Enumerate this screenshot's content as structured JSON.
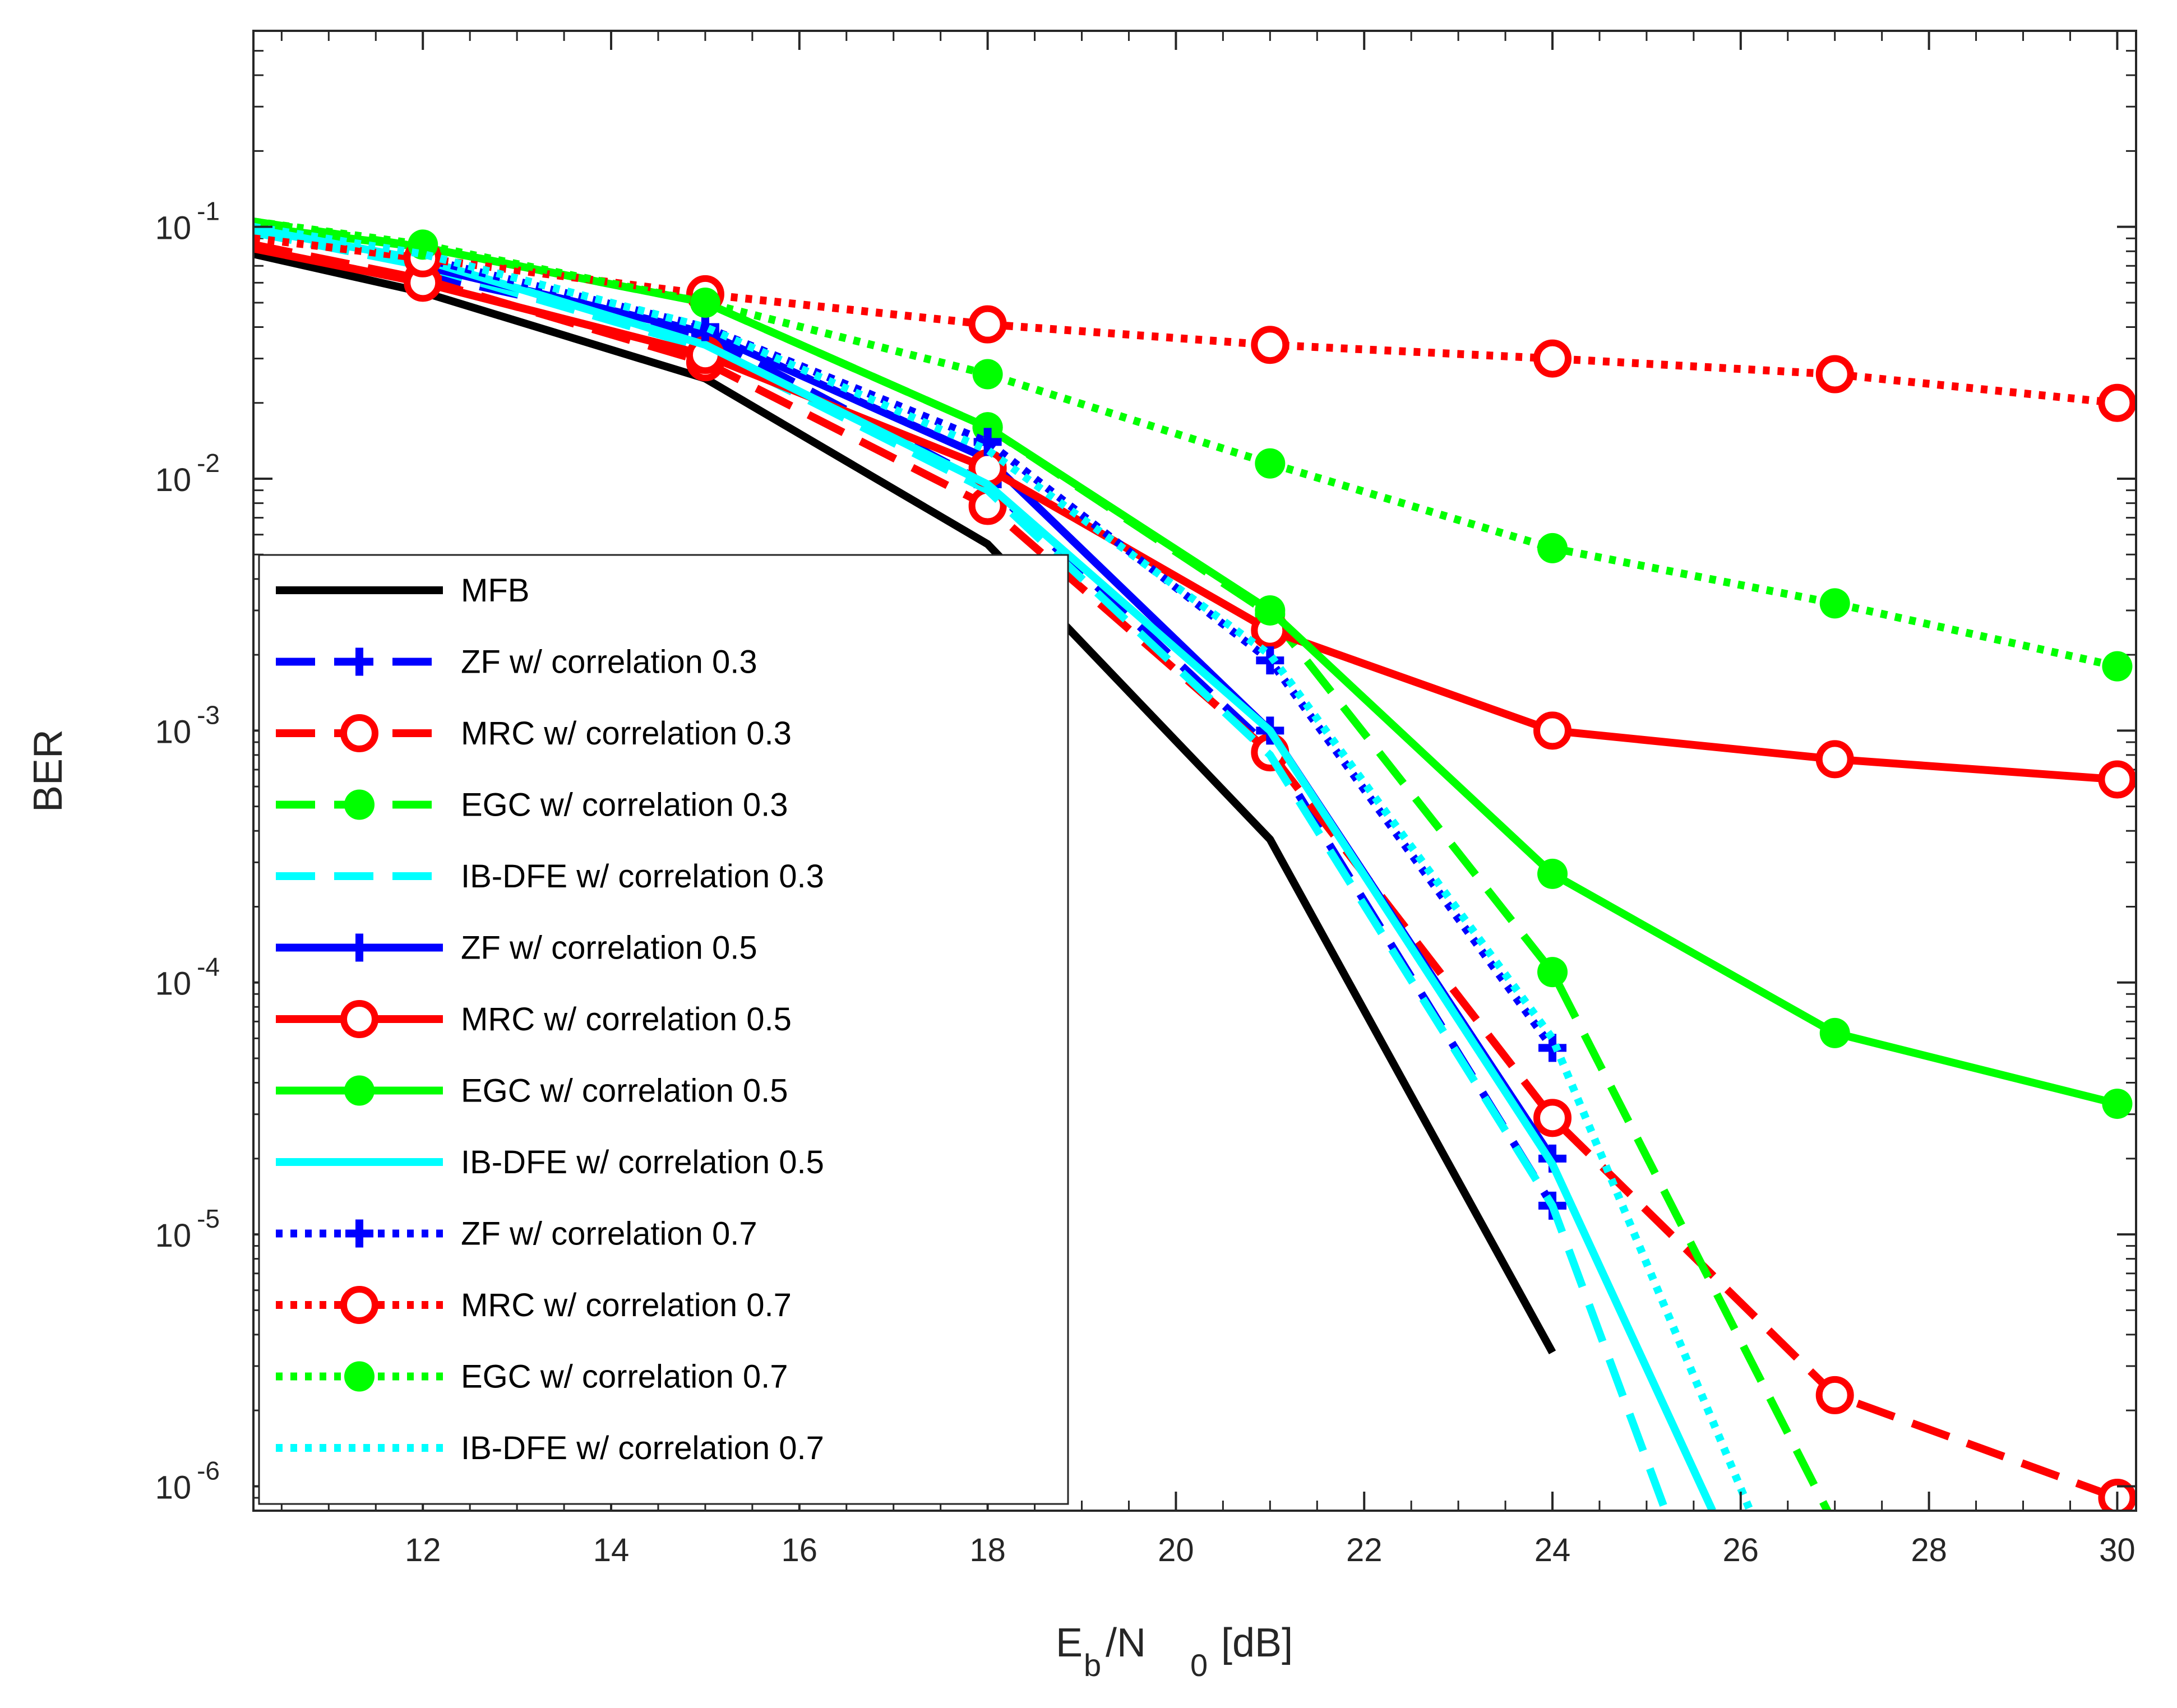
{
  "chart_data": {
    "type": "line",
    "title": "",
    "xlabel": {
      "E": "E",
      "b": "b",
      "slash": "/N",
      "zero": "0",
      "unit": "[dB]"
    },
    "ylabel": "BER",
    "xlim": [
      10.2,
      30.2
    ],
    "ylim": [
      8e-07,
      0.6
    ],
    "yscale": "log",
    "grid": false,
    "legend_position": "bottom-left",
    "x_ticks": [
      12,
      14,
      16,
      18,
      20,
      22,
      24,
      26,
      28,
      30
    ],
    "x_tick_labels": [
      "12",
      "14",
      "16",
      "18",
      "20",
      "22",
      "24",
      "26",
      "28",
      "30"
    ],
    "y_ticks": [
      {
        "value": 0.1,
        "base": "10",
        "exp": "-1"
      },
      {
        "value": 0.01,
        "base": "10",
        "exp": "-2"
      },
      {
        "value": 0.001,
        "base": "10",
        "exp": "-3"
      },
      {
        "value": 0.0001,
        "base": "10",
        "exp": "-4"
      },
      {
        "value": 1e-05,
        "base": "10",
        "exp": "-5"
      },
      {
        "value": 1e-06,
        "base": "10",
        "exp": "-6"
      }
    ],
    "series": [
      {
        "name": "MFB",
        "color": "#000000",
        "style": "solid",
        "marker": "none",
        "x": [
          10.2,
          12,
          15,
          18,
          21,
          24
        ],
        "y": [
          0.078,
          0.055,
          0.025,
          0.0055,
          0.00037,
          3.4e-06
        ]
      },
      {
        "name": "ZF w/ correlation 0.3",
        "color": "#0000FF",
        "style": "dashed",
        "marker": "plus",
        "x": [
          12,
          15,
          18,
          21,
          24
        ],
        "y": [
          0.065,
          0.037,
          0.0095,
          0.00085,
          1.3e-05
        ]
      },
      {
        "name": "MRC w/ correlation 0.3",
        "color": "#FF0000",
        "style": "dashed",
        "marker": "circle",
        "x": [
          10.2,
          12,
          15,
          18,
          21,
          24,
          27,
          30
        ],
        "y": [
          0.085,
          0.062,
          0.029,
          0.0078,
          0.00082,
          2.9e-05,
          2.3e-06,
          9e-07
        ]
      },
      {
        "name": "EGC w/ correlation 0.3",
        "color": "#00FF00",
        "style": "dashed",
        "marker": "dot",
        "x": [
          10.2,
          12,
          15,
          18,
          21,
          24,
          27
        ],
        "y": [
          0.105,
          0.083,
          0.05,
          0.016,
          0.0029,
          0.00011,
          7e-07
        ]
      },
      {
        "name": "IB-DFE w/ correlation 0.3",
        "color": "#00FFFF",
        "style": "dashed",
        "marker": "none",
        "x": [
          10.2,
          12,
          15,
          18,
          21,
          24,
          25.2
        ],
        "y": [
          0.095,
          0.07,
          0.033,
          0.009,
          0.0008,
          1.3e-05,
          8e-07
        ]
      },
      {
        "name": "ZF w/ correlation 0.5",
        "color": "#0000FF",
        "style": "solid",
        "marker": "plus",
        "x": [
          12,
          15,
          18,
          21,
          24
        ],
        "y": [
          0.07,
          0.038,
          0.012,
          0.001,
          2e-05
        ]
      },
      {
        "name": "MRC w/ correlation 0.5",
        "color": "#FF0000",
        "style": "solid",
        "marker": "circle",
        "x": [
          10.2,
          12,
          15,
          18,
          21,
          24,
          27,
          30
        ],
        "y": [
          0.082,
          0.06,
          0.031,
          0.011,
          0.0025,
          0.001,
          0.00077,
          0.00064
        ]
      },
      {
        "name": "EGC w/ correlation 0.5",
        "color": "#00FF00",
        "style": "solid",
        "marker": "dot",
        "x": [
          10.2,
          12,
          15,
          18,
          21,
          24,
          27,
          30
        ],
        "y": [
          0.1,
          0.083,
          0.05,
          0.016,
          0.003,
          0.00027,
          6.3e-05,
          3.3e-05
        ]
      },
      {
        "name": "IB-DFE w/ correlation 0.5",
        "color": "#00FFFF",
        "style": "solid",
        "marker": "none",
        "x": [
          10.2,
          12,
          15,
          18,
          21,
          24,
          25.7
        ],
        "y": [
          0.098,
          0.074,
          0.034,
          0.0095,
          0.001,
          1.9e-05,
          8e-07
        ]
      },
      {
        "name": "ZF w/ correlation 0.7",
        "color": "#0000FF",
        "style": "dotted",
        "marker": "plus",
        "x": [
          12,
          15,
          18,
          21,
          24
        ],
        "y": [
          0.075,
          0.04,
          0.014,
          0.0019,
          5.5e-05
        ]
      },
      {
        "name": "MRC w/ correlation 0.7",
        "color": "#FF0000",
        "style": "dotted",
        "marker": "circle",
        "x": [
          10.2,
          12,
          15,
          18,
          21,
          24,
          27,
          30
        ],
        "y": [
          0.09,
          0.075,
          0.054,
          0.041,
          0.034,
          0.03,
          0.026,
          0.02
        ]
      },
      {
        "name": "EGC w/ correlation 0.7",
        "color": "#00FF00",
        "style": "dotted",
        "marker": "dot",
        "x": [
          10.2,
          12,
          15,
          18,
          21,
          24,
          27,
          30
        ],
        "y": [
          0.105,
          0.085,
          0.05,
          0.026,
          0.0115,
          0.0053,
          0.0032,
          0.0018
        ]
      },
      {
        "name": "IB-DFE w/ correlation 0.7",
        "color": "#00FFFF",
        "style": "dotted",
        "marker": "none",
        "x": [
          10.2,
          12,
          15,
          18,
          21,
          24,
          26.1
        ],
        "y": [
          0.1,
          0.078,
          0.04,
          0.013,
          0.002,
          6e-05,
          8e-07
        ]
      }
    ]
  }
}
